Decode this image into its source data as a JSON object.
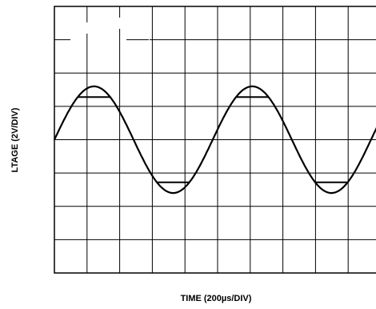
{
  "chart_data": {
    "type": "line",
    "title": "",
    "xlabel": "TIME (200µs/DIV)",
    "ylabel": "LTAGE (2V/DIV)",
    "grid": true,
    "x_divisions": 10,
    "y_divisions": 8,
    "xlim": [
      0,
      2000
    ],
    "ylim": [
      -8,
      8
    ],
    "x_unit": "µs",
    "y_unit": "V",
    "series": [
      {
        "shape": "sine",
        "amplitude_V": 3.2,
        "offset_V": 0,
        "period_us": 970,
        "start_phase_deg": 0,
        "clip_markers_V": [
          2.56,
          -2.56
        ]
      }
    ]
  }
}
